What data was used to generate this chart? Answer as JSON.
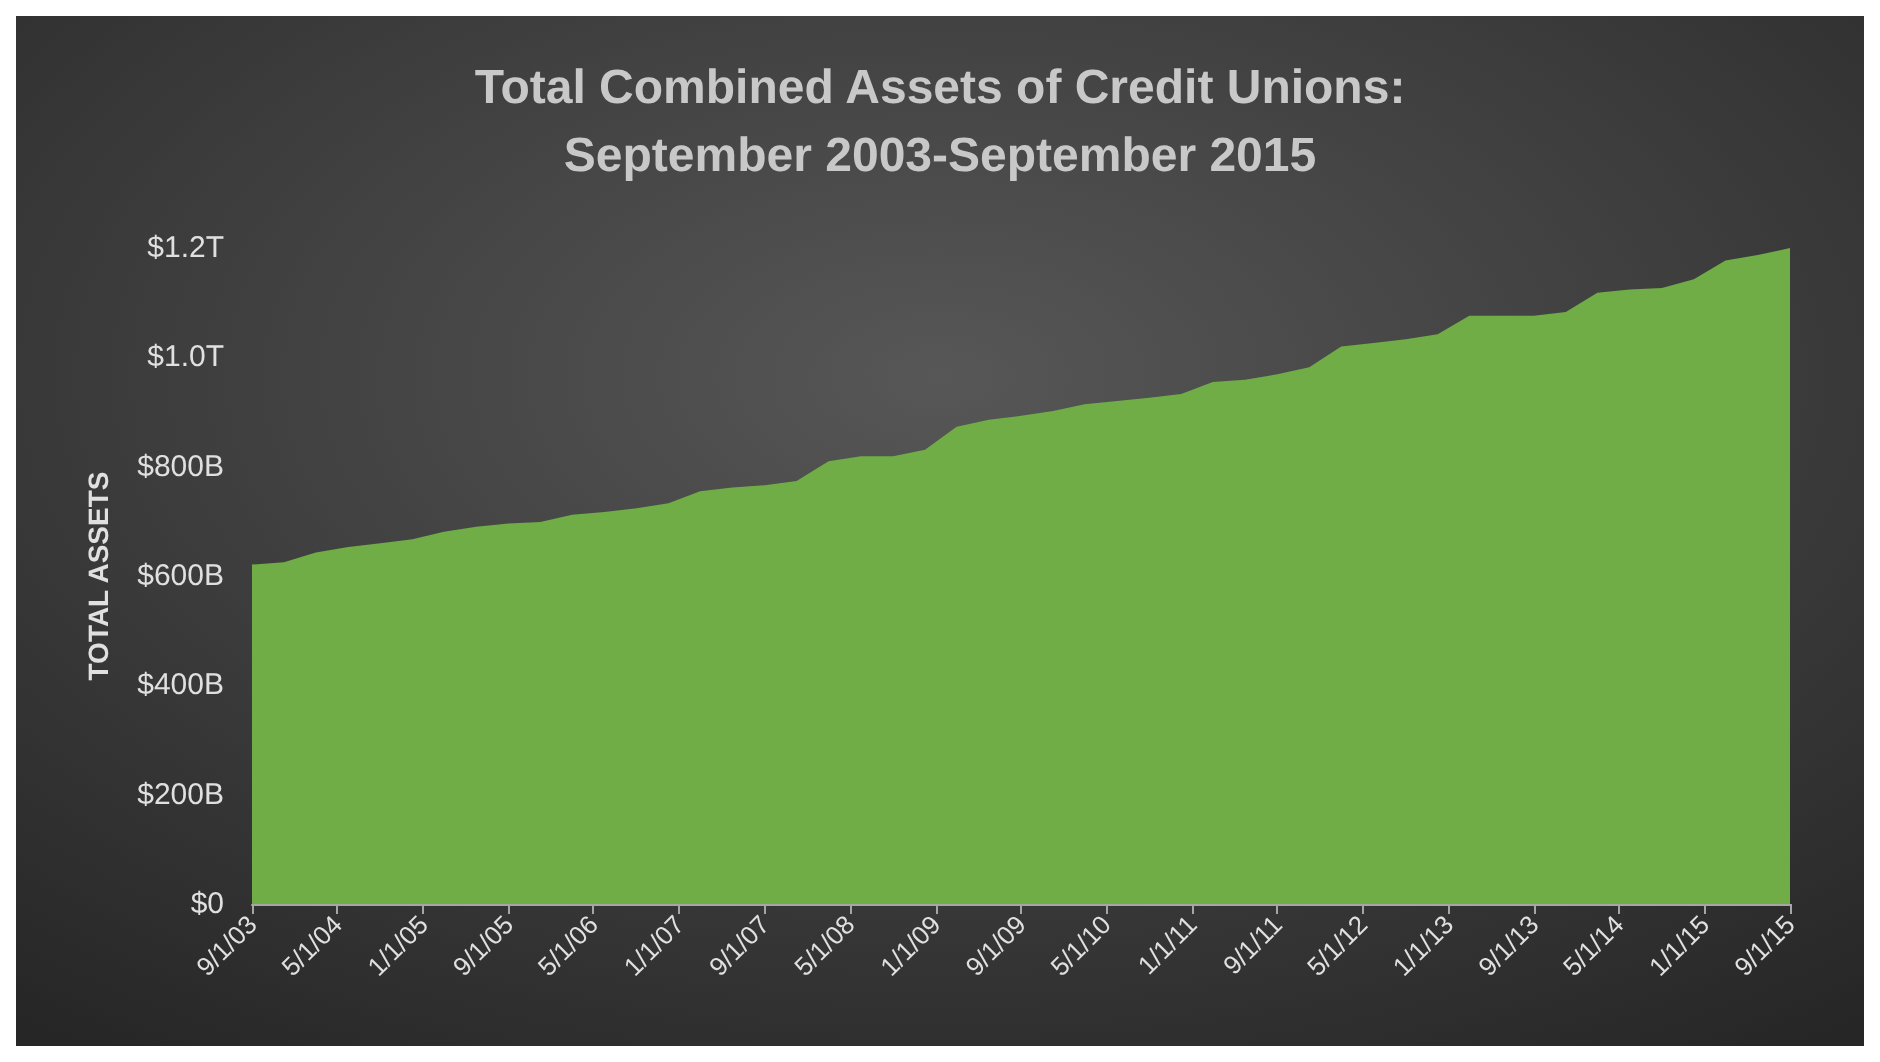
{
  "chart_data": {
    "type": "area",
    "title": "Total Combined Assets of Credit Unions:\nSeptember 2003-September 2015",
    "ylabel": "TOTAL ASSETS",
    "x": [
      "2003-09-01",
      "2003-12-01",
      "2004-03-01",
      "2004-06-01",
      "2004-09-01",
      "2004-12-01",
      "2005-03-01",
      "2005-06-01",
      "2005-09-01",
      "2005-12-01",
      "2006-03-01",
      "2006-06-01",
      "2006-09-01",
      "2006-12-01",
      "2007-03-01",
      "2007-06-01",
      "2007-09-01",
      "2007-12-01",
      "2008-03-01",
      "2008-06-01",
      "2008-09-01",
      "2008-12-01",
      "2009-03-01",
      "2009-06-01",
      "2009-09-01",
      "2009-12-01",
      "2010-03-01",
      "2010-06-01",
      "2010-09-01",
      "2010-12-01",
      "2011-03-01",
      "2011-06-01",
      "2011-09-01",
      "2011-12-01",
      "2012-03-01",
      "2012-06-01",
      "2012-09-01",
      "2012-12-01",
      "2013-03-01",
      "2013-06-01",
      "2013-09-01",
      "2013-12-01",
      "2014-03-01",
      "2014-06-01",
      "2014-09-01",
      "2014-12-01",
      "2015-03-01",
      "2015-06-01",
      "2015-09-01"
    ],
    "series": [
      {
        "color": "#70ad47",
        "values": [
          621000000000.0,
          625000000000.0,
          643000000000.0,
          653000000000.0,
          660000000000.0,
          667000000000.0,
          681000000000.0,
          690000000000.0,
          696000000000.0,
          699000000000.0,
          712000000000.0,
          717000000000.0,
          724000000000.0,
          733000000000.0,
          755000000000.0,
          762000000000.0,
          766000000000.0,
          774000000000.0,
          810000000000.0,
          819000000000.0,
          819000000000.0,
          831000000000.0,
          873000000000.0,
          886000000000.0,
          893000000000.0,
          902000000000.0,
          914000000000.0,
          920000000000.0,
          926000000000.0,
          933000000000.0,
          955000000000.0,
          959000000000.0,
          969000000000.0,
          982000000000.0,
          1020000000000.0,
          1026000000000.0,
          1033000000000.0,
          1042000000000.0,
          1076000000000.0,
          1076000000000.0,
          1076000000000.0,
          1083000000000.0,
          1118000000000.0,
          1124000000000.0,
          1127000000000.0,
          1143000000000.0,
          1177000000000.0,
          1187000000000.0,
          1200000000000.0
        ]
      }
    ],
    "xlim": [
      "2003-09-01",
      "2015-09-01"
    ],
    "xticks": [
      {
        "value": "2003-09-01",
        "label": "9/1/03"
      },
      {
        "value": "2004-05-01",
        "label": "5/1/04"
      },
      {
        "value": "2005-01-01",
        "label": "1/1/05"
      },
      {
        "value": "2005-09-01",
        "label": "9/1/05"
      },
      {
        "value": "2006-05-01",
        "label": "5/1/06"
      },
      {
        "value": "2007-01-01",
        "label": "1/1/07"
      },
      {
        "value": "2007-09-01",
        "label": "9/1/07"
      },
      {
        "value": "2008-05-01",
        "label": "5/1/08"
      },
      {
        "value": "2009-01-01",
        "label": "1/1/09"
      },
      {
        "value": "2009-09-01",
        "label": "9/1/09"
      },
      {
        "value": "2010-05-01",
        "label": "5/1/10"
      },
      {
        "value": "2011-01-01",
        "label": "1/1/11"
      },
      {
        "value": "2011-09-01",
        "label": "9/1/11"
      },
      {
        "value": "2012-05-01",
        "label": "5/1/12"
      },
      {
        "value": "2013-01-01",
        "label": "1/1/13"
      },
      {
        "value": "2013-09-01",
        "label": "9/1/13"
      },
      {
        "value": "2014-05-01",
        "label": "5/1/14"
      },
      {
        "value": "2015-01-01",
        "label": "1/1/15"
      },
      {
        "value": "2015-09-01",
        "label": "9/1/15"
      }
    ],
    "ylim": [
      0,
      1200000000000.0
    ],
    "yticks": [
      {
        "value": 0,
        "label": "$0"
      },
      {
        "value": 200000000000.0,
        "label": "$200B"
      },
      {
        "value": 400000000000.0,
        "label": "$400B"
      },
      {
        "value": 600000000000.0,
        "label": "$600B"
      },
      {
        "value": 800000000000.0,
        "label": "$800B"
      },
      {
        "value": 1000000000000.0,
        "label": "$1.0T"
      },
      {
        "value": 1200000000000.0,
        "label": "$1.2T"
      }
    ],
    "grid": false
  }
}
